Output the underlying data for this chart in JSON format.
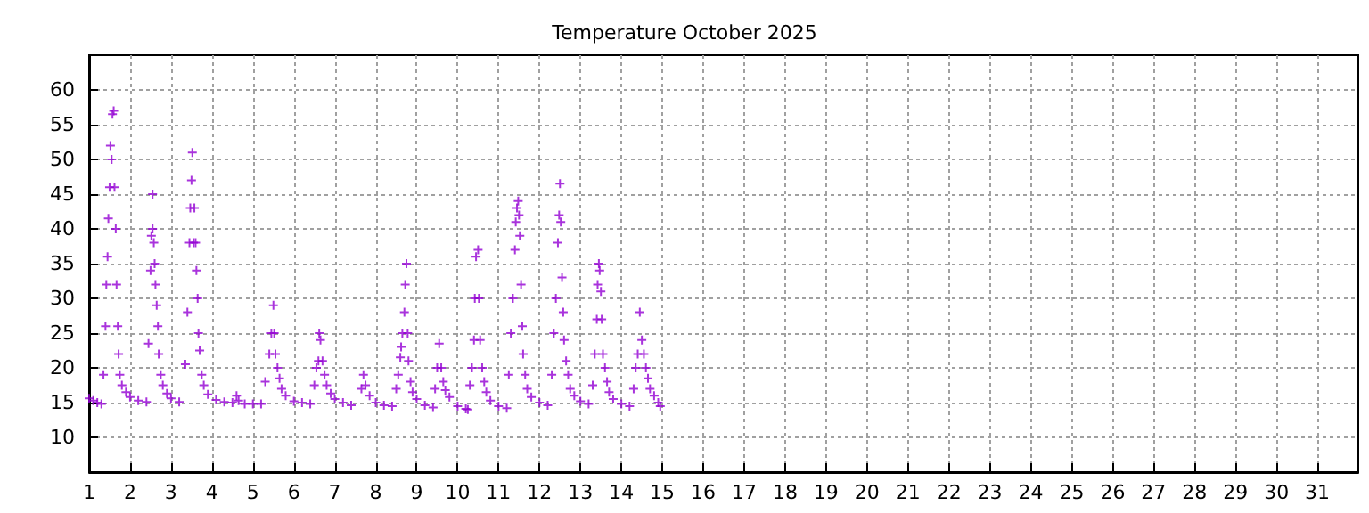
{
  "chart_data": {
    "type": "scatter",
    "title": "Temperature October 2025",
    "xlim": [
      1,
      32
    ],
    "xticks": [
      1,
      2,
      3,
      4,
      5,
      6,
      7,
      8,
      9,
      10,
      11,
      12,
      13,
      14,
      15,
      16,
      17,
      18,
      19,
      20,
      21,
      22,
      23,
      24,
      25,
      26,
      27,
      28,
      29,
      30,
      31
    ],
    "ylim": [
      5,
      65
    ],
    "yticks": [
      10,
      15,
      20,
      25,
      30,
      35,
      40,
      45,
      50,
      55,
      60
    ],
    "grid": true,
    "marker": "cross",
    "series": [
      {
        "color": "#9400d3",
        "x": [
          1.0,
          1.1,
          1.2,
          1.3,
          1.35,
          1.4,
          1.42,
          1.45,
          1.47,
          1.5,
          1.52,
          1.55,
          1.57,
          1.6,
          1.62,
          1.65,
          1.67,
          1.7,
          1.72,
          1.75,
          1.8,
          1.9,
          2.0,
          2.2,
          2.4,
          2.45,
          2.5,
          2.52,
          2.55,
          2.55,
          2.58,
          2.6,
          2.62,
          2.65,
          2.68,
          2.7,
          2.75,
          2.8,
          2.9,
          3.0,
          3.2,
          3.35,
          3.4,
          3.45,
          3.47,
          3.5,
          3.52,
          3.55,
          3.57,
          3.6,
          3.62,
          3.65,
          3.67,
          3.7,
          3.75,
          3.8,
          3.9,
          4.1,
          4.3,
          4.5,
          4.6,
          4.65,
          4.8,
          5.0,
          5.2,
          5.3,
          5.4,
          5.45,
          5.5,
          5.52,
          5.55,
          5.6,
          5.65,
          5.7,
          5.8,
          6.0,
          6.2,
          6.4,
          6.5,
          6.55,
          6.6,
          6.62,
          6.65,
          6.7,
          6.75,
          6.8,
          6.9,
          7.0,
          7.2,
          7.4,
          7.65,
          7.7,
          7.75,
          7.85,
          8.0,
          8.2,
          8.4,
          8.5,
          8.55,
          8.6,
          8.62,
          8.65,
          8.7,
          8.72,
          8.75,
          8.78,
          8.8,
          8.85,
          8.9,
          9.0,
          9.2,
          9.4,
          9.45,
          9.5,
          9.55,
          9.6,
          9.65,
          9.7,
          9.8,
          10.0,
          10.2,
          10.25,
          10.3,
          10.35,
          10.4,
          10.42,
          10.45,
          10.5,
          10.52,
          10.55,
          10.6,
          10.65,
          10.7,
          10.8,
          11.0,
          11.2,
          11.25,
          11.3,
          11.35,
          11.4,
          11.42,
          11.45,
          11.48,
          11.5,
          11.52,
          11.55,
          11.58,
          11.6,
          11.65,
          11.7,
          11.8,
          12.0,
          12.2,
          12.3,
          12.35,
          12.4,
          12.45,
          12.48,
          12.5,
          12.52,
          12.55,
          12.58,
          12.6,
          12.65,
          12.7,
          12.75,
          12.85,
          13.0,
          13.2,
          13.3,
          13.35,
          13.4,
          13.42,
          13.45,
          13.47,
          13.5,
          13.52,
          13.55,
          13.6,
          13.65,
          13.7,
          13.8,
          14.0,
          14.2,
          14.3,
          14.35,
          14.4,
          14.45,
          14.5,
          14.55,
          14.6,
          14.65,
          14.7,
          14.8,
          14.9,
          14.95
        ],
        "values": [
          15.6,
          15.3,
          15.0,
          14.8,
          19,
          26,
          32,
          36,
          41.5,
          46,
          52,
          50,
          56.5,
          57,
          46,
          40,
          32,
          26,
          22,
          19,
          17.5,
          16.5,
          15.8,
          15.3,
          15.1,
          23.5,
          34,
          39,
          40,
          45,
          38,
          35,
          32,
          29,
          26,
          22,
          19,
          17.5,
          16.3,
          15.6,
          15.1,
          20.5,
          28,
          38,
          43,
          47,
          51,
          38,
          43,
          38,
          34,
          30,
          25,
          22.5,
          19,
          17.5,
          16.2,
          15.4,
          15.1,
          15.0,
          16,
          15.3,
          14.8,
          14.8,
          14.8,
          18,
          22,
          25,
          29,
          25,
          22,
          20,
          18.5,
          17,
          16,
          15.2,
          15.0,
          14.8,
          17.5,
          20,
          21,
          25,
          24,
          21,
          19,
          17.5,
          16.3,
          15.5,
          15.0,
          14.6,
          17,
          19,
          17.5,
          16,
          15,
          14.6,
          14.5,
          17,
          19,
          21.5,
          23,
          25,
          28,
          32,
          35,
          25,
          21,
          18,
          16.5,
          15.5,
          14.6,
          14.3,
          17,
          20,
          23.5,
          20,
          18,
          16.8,
          15.8,
          14.5,
          14.1,
          14.0,
          17.5,
          20,
          24,
          30,
          36,
          37,
          30,
          24,
          20,
          18,
          16.5,
          15.3,
          14.5,
          14.2,
          19,
          25,
          30,
          37,
          41,
          43,
          44,
          42,
          39,
          32,
          26,
          22,
          19,
          17,
          15.8,
          15.0,
          14.6,
          19,
          25,
          30,
          38,
          42,
          46.5,
          41,
          33,
          28,
          24,
          21,
          19,
          17,
          16,
          15.2,
          14.8,
          17.5,
          22,
          27,
          32,
          35,
          34,
          31,
          27,
          22,
          20,
          18,
          16.5,
          15.5,
          14.8,
          14.5,
          17,
          20,
          22,
          28,
          24,
          22,
          20,
          18.5,
          17,
          16,
          15,
          14.5
        ]
      }
    ]
  }
}
